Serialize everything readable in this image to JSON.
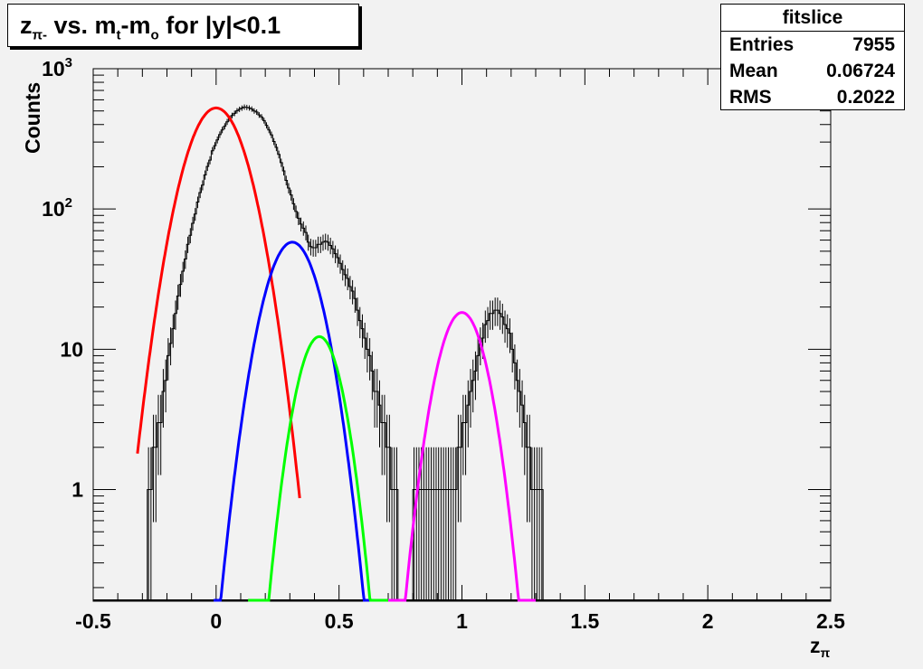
{
  "title": {
    "z": "z",
    "pi_sub": "π-",
    "vs": " vs. m",
    "t_sub": "t",
    "dash_m": "-m",
    "o_sub": "o",
    "rest": " for |y|<0.1"
  },
  "stats": {
    "name": "fitslice",
    "rows": [
      {
        "label": "Entries",
        "value": "7955"
      },
      {
        "label": "Mean",
        "value": "0.06724"
      },
      {
        "label": "RMS",
        "value": "0.2022"
      }
    ]
  },
  "colors": {
    "background": "#f2f2f2",
    "histogram": "#000000",
    "red": "#ff0000",
    "blue": "#0000ff",
    "green": "#00ff00",
    "magenta": "#ff00ff"
  },
  "chart_data": {
    "type": "line",
    "xlabel": "z",
    "xlabel_sub": "π",
    "ylabel": "Counts",
    "xlim": [
      -0.5,
      2.5
    ],
    "ylim": [
      0.16,
      1000
    ],
    "yscale": "log",
    "x_ticks": [
      "-0.5",
      "0",
      "0.5",
      "1",
      "1.5",
      "2",
      "2.5"
    ],
    "y_ticks": [
      {
        "value": 1,
        "label": "1",
        "sup": ""
      },
      {
        "value": 10,
        "label": "10",
        "sup": ""
      },
      {
        "value": 100,
        "label": "10",
        "sup": "2"
      },
      {
        "value": 1000,
        "label": "10",
        "sup": "3"
      }
    ],
    "grid": false,
    "legend": "none",
    "stats_box": "top-right",
    "histogram": {
      "name": "fitslice",
      "bin_width": 0.01,
      "x_start": -0.3,
      "counts": [
        0,
        0,
        1,
        1,
        2,
        2,
        3,
        3,
        5,
        6,
        9,
        11,
        14,
        18,
        24,
        29,
        36,
        44,
        56,
        65,
        79,
        92,
        112,
        131,
        148,
        175,
        201,
        223,
        260,
        283,
        311,
        339,
        366,
        389,
        418,
        442,
        464,
        481,
        501,
        514,
        524,
        533,
        530,
        525,
        516,
        500,
        491,
        468,
        453,
        427,
        395,
        366,
        338,
        303,
        275,
        245,
        214,
        187,
        160,
        141,
        126,
        109,
        96,
        86,
        78,
        73,
        68,
        58,
        54,
        53,
        53,
        56,
        56,
        58,
        59,
        58,
        55,
        52,
        48,
        45,
        41,
        37,
        34,
        32,
        28,
        26,
        23,
        19,
        16,
        14,
        12,
        10,
        9,
        7,
        5,
        5,
        4,
        3,
        3,
        2,
        2,
        1,
        1,
        1,
        0,
        0,
        0,
        0,
        0,
        0,
        1,
        1,
        1,
        1,
        1,
        1,
        1,
        1,
        1,
        1,
        1,
        1,
        1,
        1,
        1,
        1,
        1,
        1,
        2,
        2,
        3,
        3,
        4,
        5,
        6,
        7,
        9,
        11,
        12,
        15,
        16,
        18,
        18,
        19,
        19,
        18,
        17,
        15,
        14,
        13,
        10,
        8,
        6,
        5,
        4,
        3,
        2,
        2,
        1,
        1,
        1,
        1,
        1,
        0,
        0
      ]
    },
    "series": [
      {
        "color": "#ff0000",
        "amplitude": 525,
        "mean": 0.0,
        "sigma": 0.095,
        "xmin": -0.32,
        "xmax": 0.34
      },
      {
        "color": "#0000ff",
        "amplitude": 58,
        "mean": 0.31,
        "sigma": 0.085,
        "xmin": -0.01,
        "xmax": 0.64
      },
      {
        "color": "#00ff00",
        "amplitude": 12.3,
        "mean": 0.42,
        "sigma": 0.07,
        "xmin": 0.13,
        "xmax": 0.72
      },
      {
        "color": "#ff00ff",
        "amplitude": 18.3,
        "mean": 1.0,
        "sigma": 0.075,
        "xmin": 0.7,
        "xmax": 1.3
      }
    ]
  }
}
